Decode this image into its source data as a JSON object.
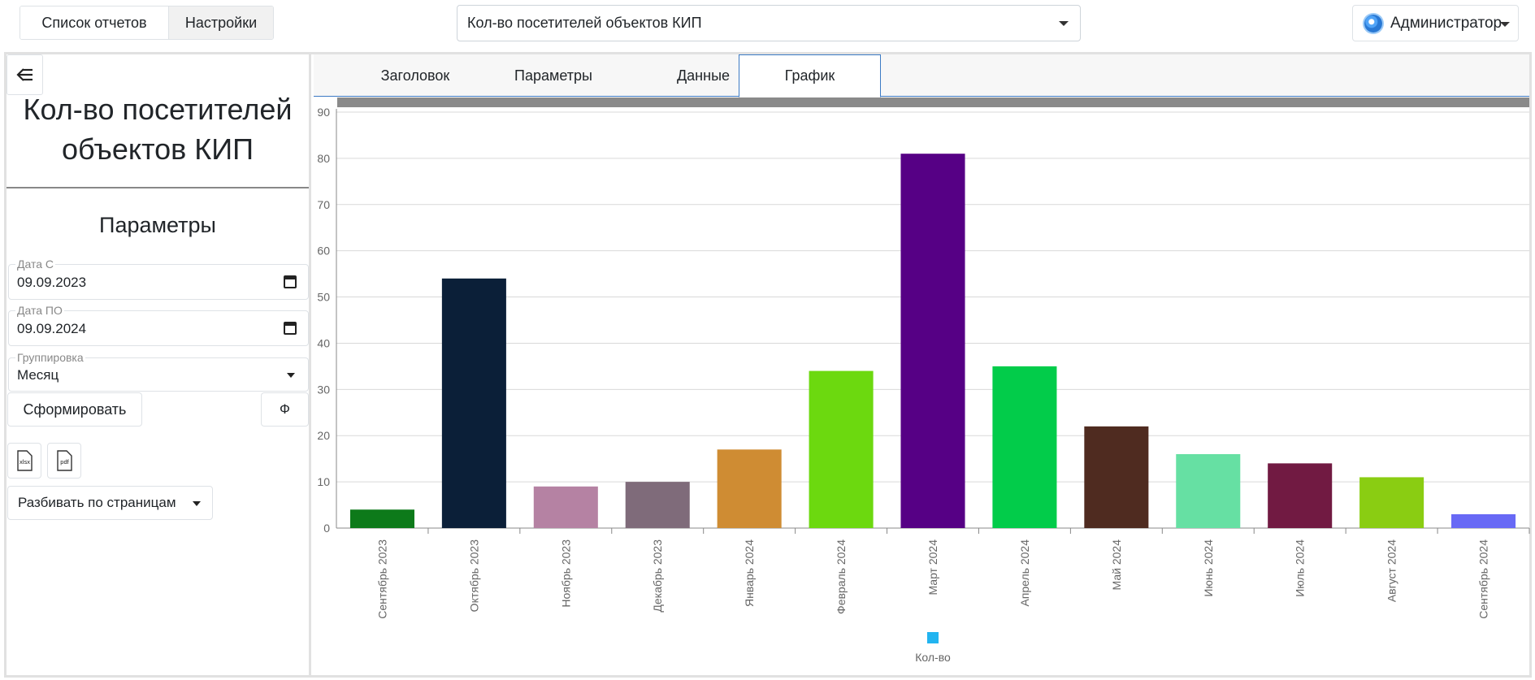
{
  "topnav": {
    "reports_list": "Список отчетов",
    "settings": "Настройки"
  },
  "report_select": {
    "value": "Кол-во посетителей объектов КИП"
  },
  "user": {
    "name": "Администратор"
  },
  "sidebar": {
    "title_line1": "Кол-во посетителей",
    "title_line2": "объектов КИП",
    "params_title": "Параметры",
    "date_from": {
      "label": "Дата С",
      "value": "09.09.2023"
    },
    "date_to": {
      "label": "Дата ПО",
      "value": "09.09.2024"
    },
    "grouping": {
      "label": "Группировка",
      "value": "Месяц"
    },
    "generate_button": "Сформировать",
    "filter_button": "Ф",
    "xlsx_icon_text": "xlsx",
    "pdf_icon_text": "pdf",
    "pagination_button": "Разбивать по страницам"
  },
  "tabs": [
    "Заголовок",
    "Параметры",
    "Данные",
    "График"
  ],
  "active_tab": "График",
  "chart_data": {
    "type": "bar",
    "categories": [
      "Сентябрь 2023",
      "Октябрь 2023",
      "Ноябрь 2023",
      "Декабрь 2023",
      "Январь 2024",
      "Февраль 2024",
      "Март 2024",
      "Апрель 2024",
      "Май 2024",
      "Июнь 2024",
      "Июль 2024",
      "Август 2024",
      "Сентябрь 2024"
    ],
    "series": [
      {
        "name": "Кол-во",
        "values": [
          4,
          54,
          9,
          10,
          17,
          34,
          81,
          35,
          22,
          16,
          14,
          11,
          3
        ]
      }
    ],
    "bar_colors": [
      "#0d7a1a",
      "#0b1f38",
      "#b582a3",
      "#7f6b7a",
      "#cf8c33",
      "#6cd90f",
      "#560085",
      "#02cc4a",
      "#4f2b20",
      "#66e0a3",
      "#711a42",
      "#8acd12",
      "#6869f5"
    ],
    "legend_color": "#22b4f0",
    "ylim": [
      0,
      90
    ],
    "yticks": [
      0,
      10,
      20,
      30,
      40,
      50,
      60,
      70,
      80,
      90
    ],
    "grid": true,
    "legend_position": "bottom"
  }
}
